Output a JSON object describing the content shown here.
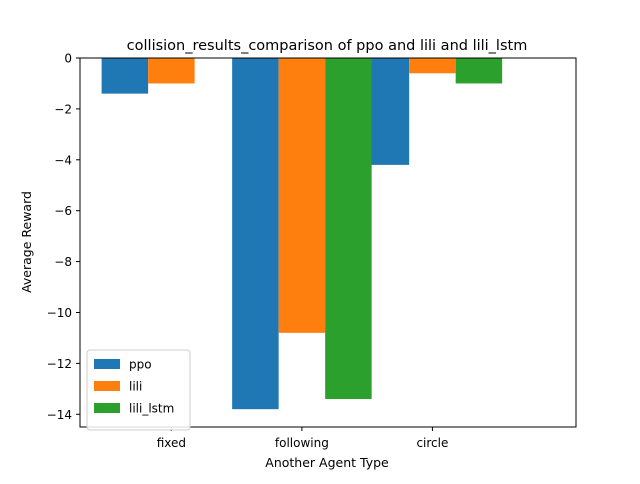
{
  "chart_data": {
    "type": "bar",
    "title": "collision_results_comparison of ppo and lili and lili_lstm",
    "xlabel": "Another Agent Type",
    "ylabel": "Average Reward",
    "categories": [
      "fixed",
      "following",
      "circle"
    ],
    "series": [
      {
        "name": "ppo",
        "color": "#1f77b4",
        "values": [
          -1.4,
          -13.8,
          -4.2
        ]
      },
      {
        "name": "lili",
        "color": "#ff7f0e",
        "values": [
          -1.0,
          -10.8,
          -0.6
        ]
      },
      {
        "name": "lili_lstm",
        "color": "#2ca02c",
        "values": [
          0,
          -13.4,
          -1.0
        ]
      }
    ],
    "ylim": [
      -14.5,
      0
    ],
    "yticks": [
      0,
      -2,
      -4,
      -6,
      -8,
      -10,
      -12,
      -14
    ],
    "legend_position": "lower-left",
    "grid": false
  }
}
